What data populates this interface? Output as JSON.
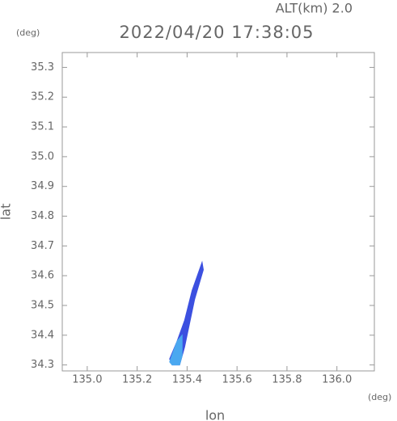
{
  "chart_data": {
    "type": "plume",
    "header": "ALT(km) 2.0",
    "title": "2022/04/20 17:38:05",
    "y_unit": "(deg)",
    "x_unit": "(deg)",
    "xlabel": "lon",
    "ylabel": "lat",
    "xlim": [
      134.9,
      136.15
    ],
    "ylim": [
      34.28,
      35.35
    ],
    "xticks": [
      {
        "value": 135,
        "label": "135.0"
      },
      135.2,
      135.4,
      135.6,
      135.8,
      {
        "value": 136,
        "label": "136.0"
      }
    ],
    "yticks": [
      34.3,
      34.4,
      34.5,
      34.6,
      34.7,
      34.8,
      34.9,
      {
        "value": 35,
        "label": "35.0"
      },
      35.1,
      35.2,
      35.3
    ],
    "series": [
      {
        "color": "#3c50e0",
        "x": [
          135.46,
          135.42,
          135.39,
          135.36,
          135.33,
          135.34,
          135.37,
          135.39,
          135.41,
          135.43,
          135.465
        ],
        "y": [
          34.645,
          34.55,
          34.45,
          34.38,
          34.32,
          34.3,
          34.3,
          34.36,
          34.44,
          34.52,
          34.62
        ]
      },
      {
        "color": "#4aa8f0",
        "x": [
          135.33,
          135.36,
          135.38,
          135.38,
          135.37,
          135.34
        ],
        "y": [
          34.31,
          34.38,
          34.4,
          34.33,
          34.3,
          34.3
        ]
      }
    ]
  }
}
